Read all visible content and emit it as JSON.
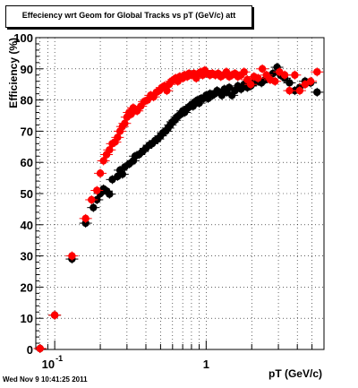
{
  "footer_text": "Wed Nov  9 10:41:25 2011",
  "chart_data": {
    "type": "scatter",
    "title": "Effeciency wrt Geom for Global Tracks vs pT (GeV/c) att",
    "xlabel": "pT (GeV/c)",
    "ylabel": "Efficiency (%)",
    "xscale": "log",
    "xlim": [
      0.075,
      6.0
    ],
    "ylim": [
      0,
      100
    ],
    "yticks": [
      0,
      10,
      20,
      30,
      40,
      50,
      60,
      70,
      80,
      90,
      100
    ],
    "xtick_labels": [
      {
        "x": 0.1,
        "base": "10",
        "exp": "-1"
      },
      {
        "x": 1,
        "base": "1",
        "exp": ""
      }
    ],
    "grid": true,
    "colors": {
      "black_series": "#000000",
      "red_series": "#ff0000"
    },
    "series": [
      {
        "color": "#000000",
        "points": [
          [
            0.08,
            0.3
          ],
          [
            0.1,
            11
          ],
          [
            0.13,
            29
          ],
          [
            0.16,
            40.5
          ],
          [
            0.18,
            45.5
          ],
          [
            0.19,
            48
          ],
          [
            0.2,
            50
          ],
          [
            0.21,
            51.5
          ],
          [
            0.22,
            50.8
          ],
          [
            0.23,
            49.8
          ],
          [
            0.24,
            54.5
          ],
          [
            0.26,
            55.5
          ],
          [
            0.27,
            57.5
          ],
          [
            0.28,
            56.2
          ],
          [
            0.29,
            58.5
          ],
          [
            0.31,
            59.5
          ],
          [
            0.33,
            60.5
          ],
          [
            0.34,
            62
          ],
          [
            0.36,
            62.5
          ],
          [
            0.38,
            63.5
          ],
          [
            0.4,
            64.5
          ],
          [
            0.42,
            65.5
          ],
          [
            0.44,
            66
          ],
          [
            0.46,
            67
          ],
          [
            0.48,
            67.5
          ],
          [
            0.5,
            68.5
          ],
          [
            0.52,
            69.5
          ],
          [
            0.54,
            70
          ],
          [
            0.56,
            71
          ],
          [
            0.58,
            72
          ],
          [
            0.6,
            73
          ],
          [
            0.62,
            73.5
          ],
          [
            0.64,
            74.5
          ],
          [
            0.66,
            75
          ],
          [
            0.68,
            75.5
          ],
          [
            0.7,
            76.5
          ],
          [
            0.72,
            76
          ],
          [
            0.74,
            77
          ],
          [
            0.76,
            77.5
          ],
          [
            0.78,
            78
          ],
          [
            0.8,
            78.5
          ],
          [
            0.82,
            78
          ],
          [
            0.85,
            79.5
          ],
          [
            0.88,
            80
          ],
          [
            0.9,
            79
          ],
          [
            0.93,
            80.5
          ],
          [
            0.96,
            80.5
          ],
          [
            1.0,
            81.5
          ],
          [
            1.03,
            80.5
          ],
          [
            1.06,
            82
          ],
          [
            1.1,
            81.5
          ],
          [
            1.14,
            82
          ],
          [
            1.18,
            83
          ],
          [
            1.22,
            82.5
          ],
          [
            1.27,
            81.5
          ],
          [
            1.32,
            83.5
          ],
          [
            1.37,
            82.5
          ],
          [
            1.42,
            84
          ],
          [
            1.48,
            81.5
          ],
          [
            1.55,
            83
          ],
          [
            1.62,
            84.5
          ],
          [
            1.7,
            83.5
          ],
          [
            1.78,
            85
          ],
          [
            1.87,
            84
          ],
          [
            1.97,
            84.5
          ],
          [
            2.07,
            85.5
          ],
          [
            2.2,
            86
          ],
          [
            2.32,
            85.5
          ],
          [
            2.45,
            86.5
          ],
          [
            2.6,
            87
          ],
          [
            2.76,
            88.5
          ],
          [
            2.94,
            90.5
          ],
          [
            3.1,
            88
          ],
          [
            3.3,
            87
          ],
          [
            3.55,
            85.5
          ],
          [
            3.85,
            83
          ],
          [
            4.15,
            84
          ],
          [
            4.5,
            86
          ],
          [
            4.9,
            85.5
          ],
          [
            5.4,
            82.5
          ]
        ]
      },
      {
        "color": "#ff0000",
        "points": [
          [
            0.08,
            0.3
          ],
          [
            0.1,
            11
          ],
          [
            0.13,
            30
          ],
          [
            0.16,
            42
          ],
          [
            0.175,
            48
          ],
          [
            0.19,
            51
          ],
          [
            0.2,
            56.5
          ],
          [
            0.21,
            60.5
          ],
          [
            0.22,
            62.5
          ],
          [
            0.23,
            64
          ],
          [
            0.24,
            66
          ],
          [
            0.25,
            66.5
          ],
          [
            0.26,
            68
          ],
          [
            0.27,
            70
          ],
          [
            0.28,
            71.5
          ],
          [
            0.29,
            72.5
          ],
          [
            0.3,
            74.5
          ],
          [
            0.31,
            76
          ],
          [
            0.32,
            75.5
          ],
          [
            0.33,
            77.5
          ],
          [
            0.35,
            76.5
          ],
          [
            0.37,
            78
          ],
          [
            0.39,
            79.5
          ],
          [
            0.41,
            80
          ],
          [
            0.43,
            81.5
          ],
          [
            0.45,
            81
          ],
          [
            0.47,
            82.5
          ],
          [
            0.49,
            83
          ],
          [
            0.51,
            84
          ],
          [
            0.53,
            84.5
          ],
          [
            0.55,
            83
          ],
          [
            0.57,
            85
          ],
          [
            0.59,
            86
          ],
          [
            0.61,
            86.5
          ],
          [
            0.63,
            87
          ],
          [
            0.65,
            86
          ],
          [
            0.67,
            87.5
          ],
          [
            0.7,
            87
          ],
          [
            0.72,
            88
          ],
          [
            0.75,
            87.5
          ],
          [
            0.77,
            88.5
          ],
          [
            0.8,
            88
          ],
          [
            0.83,
            88.5
          ],
          [
            0.86,
            87
          ],
          [
            0.89,
            88.5
          ],
          [
            0.92,
            89
          ],
          [
            0.95,
            88
          ],
          [
            0.98,
            89.5
          ],
          [
            1.02,
            88.5
          ],
          [
            1.06,
            88
          ],
          [
            1.1,
            88.5
          ],
          [
            1.15,
            88
          ],
          [
            1.2,
            88.5
          ],
          [
            1.25,
            87.5
          ],
          [
            1.3,
            88
          ],
          [
            1.36,
            89
          ],
          [
            1.42,
            87.5
          ],
          [
            1.48,
            88
          ],
          [
            1.55,
            88.5
          ],
          [
            1.62,
            87.5
          ],
          [
            1.7,
            88
          ],
          [
            1.78,
            89
          ],
          [
            1.87,
            86.5
          ],
          [
            1.97,
            85
          ],
          [
            2.07,
            87.5
          ],
          [
            2.2,
            87
          ],
          [
            2.35,
            90
          ],
          [
            2.5,
            88
          ],
          [
            2.65,
            86.5
          ],
          [
            2.85,
            86
          ],
          [
            3.05,
            89
          ],
          [
            3.3,
            88
          ],
          [
            3.55,
            83
          ],
          [
            3.85,
            88
          ],
          [
            4.15,
            83
          ],
          [
            4.5,
            85
          ],
          [
            4.9,
            86
          ],
          [
            5.4,
            89
          ]
        ]
      }
    ]
  }
}
